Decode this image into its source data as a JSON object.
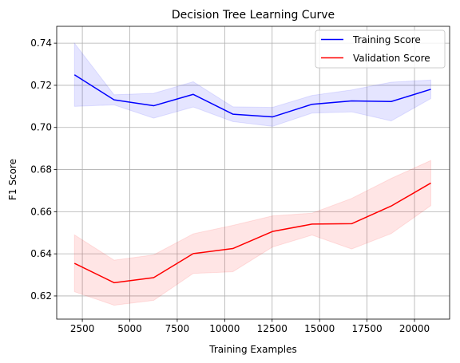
{
  "chart_data": {
    "type": "line",
    "title": "Decision Tree Learning Curve",
    "xlabel": "Training Examples",
    "ylabel": "F1 Score",
    "xlim": [
      1150,
      21850
    ],
    "ylim": [
      0.609,
      0.748
    ],
    "x_ticks": [
      2500,
      5000,
      7500,
      10000,
      12500,
      15000,
      17500,
      20000
    ],
    "y_ticks": [
      0.62,
      0.64,
      0.66,
      0.68,
      0.7,
      0.72,
      0.74
    ],
    "grid": true,
    "legend_position": "upper right",
    "x": [
      2086,
      4172,
      6258,
      8344,
      10430,
      12516,
      14602,
      16688,
      18774,
      20860
    ],
    "series": [
      {
        "name": "Training Score",
        "color": "#0000ff",
        "values": [
          0.725,
          0.7131,
          0.7103,
          0.7157,
          0.7063,
          0.705,
          0.711,
          0.7126,
          0.7123,
          0.7181
        ],
        "band_upper": [
          0.74,
          0.7155,
          0.7162,
          0.7217,
          0.7098,
          0.7095,
          0.7152,
          0.7178,
          0.7215,
          0.7225
        ],
        "band_lower": [
          0.71,
          0.7107,
          0.7044,
          0.7097,
          0.7028,
          0.7005,
          0.7068,
          0.7074,
          0.7031,
          0.7137
        ]
      },
      {
        "name": "Validation Score",
        "color": "#ff0000",
        "values": [
          0.6355,
          0.6263,
          0.6287,
          0.6401,
          0.6425,
          0.6506,
          0.6541,
          0.6543,
          0.6627,
          0.6736
        ],
        "band_upper": [
          0.649,
          0.637,
          0.6395,
          0.6495,
          0.6535,
          0.658,
          0.6593,
          0.6663,
          0.6758,
          0.6843
        ],
        "band_lower": [
          0.622,
          0.6156,
          0.6179,
          0.6307,
          0.6315,
          0.6432,
          0.6489,
          0.6423,
          0.6496,
          0.6629
        ]
      }
    ]
  }
}
